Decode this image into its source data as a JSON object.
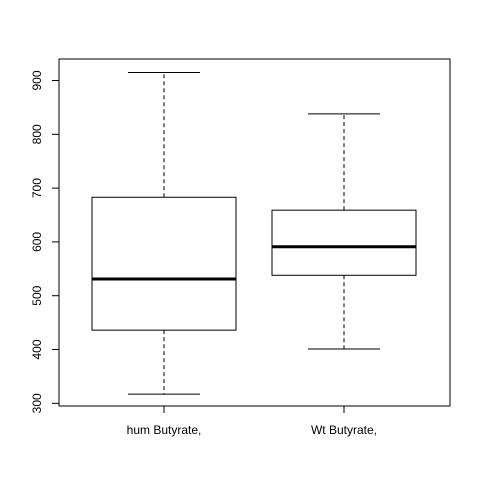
{
  "chart_data": {
    "type": "box",
    "title": "",
    "xlabel": "",
    "ylabel": "",
    "ylim": [
      295,
      940
    ],
    "yticks": [
      300,
      400,
      500,
      600,
      700,
      800,
      900
    ],
    "ytick_labels": [
      "300",
      "400",
      "500",
      "600",
      "700",
      "800",
      "900"
    ],
    "grid": false,
    "categories": [
      "hum Butyrate,",
      "Wt Butyrate,"
    ],
    "boxes": [
      {
        "label": "hum Butyrate,",
        "min": 317,
        "q1": 436,
        "median": 531,
        "q3": 683,
        "max": 915
      },
      {
        "label": "Wt Butyrate,",
        "min": 401,
        "q1": 538,
        "median": 591,
        "q3": 659,
        "max": 838
      }
    ]
  },
  "colors": {
    "box_stroke": "#000000",
    "median": "#000000",
    "background": "#ffffff"
  }
}
